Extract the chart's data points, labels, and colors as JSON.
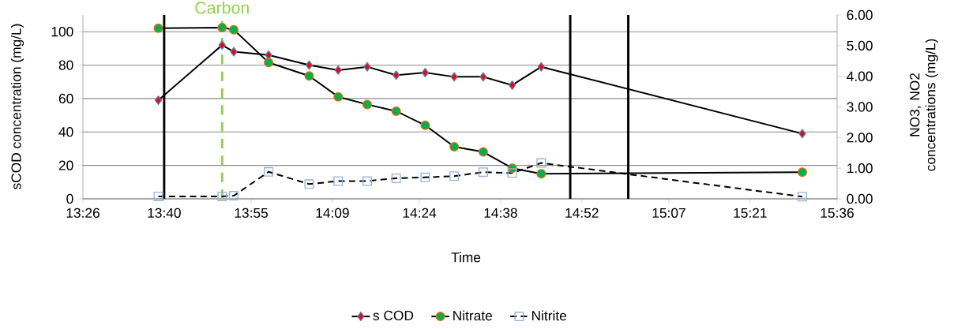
{
  "chart_data": {
    "type": "line",
    "xlabel": "Time",
    "ylabel": "sCOD concentration (mg/L)",
    "y2label": "NO3, NO2 concentrations (mg/L)",
    "x": [
      13.65,
      13.8333,
      13.8667,
      13.9667,
      14.0833,
      14.1667,
      14.25,
      14.3333,
      14.4167,
      14.5,
      14.5833,
      14.6667,
      14.75,
      15.5
    ],
    "series": [
      {
        "name": "s COD",
        "color": "#ff0000",
        "marker": "diamond",
        "line_style": "solid",
        "values": [
          59,
          92,
          88,
          86,
          80,
          77,
          79,
          74,
          75.5,
          73,
          73,
          68,
          79,
          39
        ]
      },
      {
        "name": "Nitrate",
        "color": "#00b050",
        "marker": "circle",
        "line_style": "solid",
        "axis": "y2",
        "values": [
          5.57,
          5.59,
          5.52,
          4.45,
          4.01,
          3.33,
          3.08,
          2.86,
          2.4,
          1.7,
          1.53,
          1.0,
          0.82,
          0.87
        ]
      },
      {
        "name": "Nitrite",
        "color": "#95b3d7",
        "marker": "square",
        "line_style": "dashed",
        "axis": "y2",
        "values": [
          0.08,
          0.08,
          0.1,
          0.88,
          0.48,
          0.58,
          0.58,
          0.67,
          0.7,
          0.74,
          0.87,
          0.84,
          1.17,
          0.07
        ]
      }
    ],
    "xlim": [
      13.43333,
      15.6
    ],
    "xticks": [
      {
        "value": 13.43333,
        "label": "13:26"
      },
      {
        "value": 13.66667,
        "label": "13:40"
      },
      {
        "value": 13.91667,
        "label": "13:55"
      },
      {
        "value": 14.15,
        "label": "14:09"
      },
      {
        "value": 14.4,
        "label": "14:24"
      },
      {
        "value": 14.63333,
        "label": "14:38"
      },
      {
        "value": 14.86667,
        "label": "14:52"
      },
      {
        "value": 15.11667,
        "label": "15:07"
      },
      {
        "value": 15.35,
        "label": "15:21"
      },
      {
        "value": 15.6,
        "label": "15:36"
      }
    ],
    "ylim": [
      0,
      110
    ],
    "yticks": [
      0,
      20,
      40,
      60,
      80,
      100
    ],
    "y2lim": [
      0,
      6
    ],
    "y2ticks": [
      {
        "value": 0,
        "label": "0.00"
      },
      {
        "value": 1,
        "label": "1.00"
      },
      {
        "value": 2,
        "label": "2.00"
      },
      {
        "value": 3,
        "label": "3.00"
      },
      {
        "value": 4,
        "label": "4.00"
      },
      {
        "value": 5,
        "label": "5.00"
      },
      {
        "value": 6,
        "label": "6.00"
      }
    ],
    "ref_lines": [
      {
        "axis": "x",
        "value": 13.6667,
        "color": "#000000"
      },
      {
        "axis": "x",
        "value": 13.8333,
        "label": "Carbon",
        "color": "#92d050",
        "line_style": "dashed"
      },
      {
        "axis": "x",
        "value": 14.8333,
        "color": "#000000"
      },
      {
        "axis": "x",
        "value": 15.0,
        "color": "#000000"
      }
    ],
    "grid": "y",
    "legend": "bottom"
  }
}
